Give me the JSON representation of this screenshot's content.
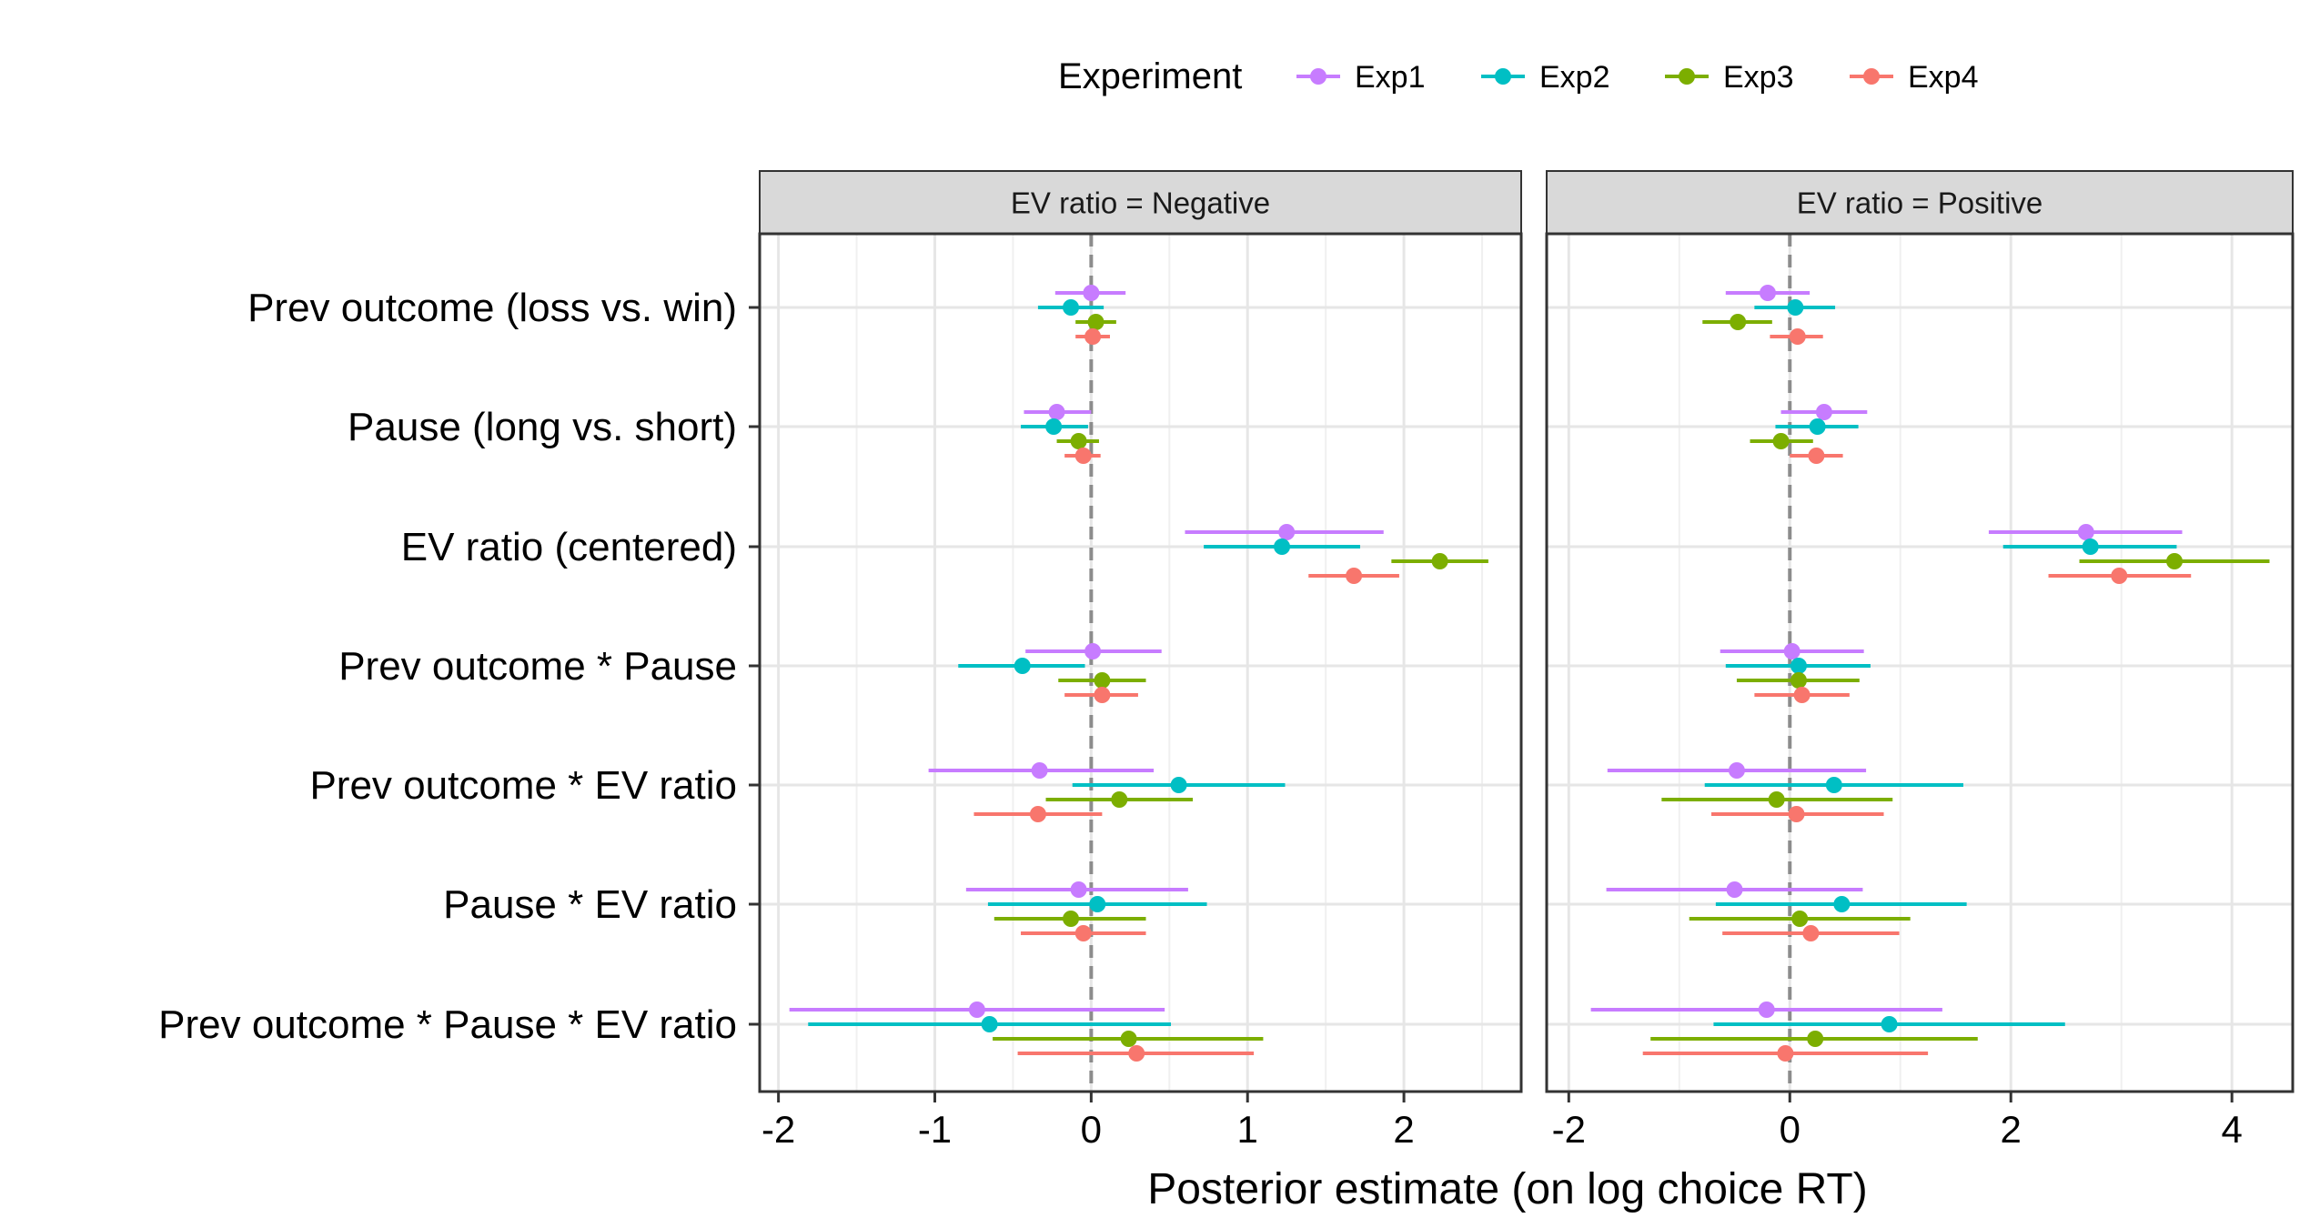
{
  "legend": {
    "title": "Experiment",
    "items": [
      {
        "label": "Exp1",
        "color": "#C77CFF"
      },
      {
        "label": "Exp2",
        "color": "#00BFC4"
      },
      {
        "label": "Exp3",
        "color": "#7CAE00"
      },
      {
        "label": "Exp4",
        "color": "#F8766D"
      }
    ]
  },
  "chart_data": {
    "type": "scatter",
    "subtype": "coefficient interval plot (point estimate with horizontal interval)",
    "xlabel": "Posterior estimate (on log choice RT)",
    "ylabel": "",
    "grid": true,
    "legend_position": "top",
    "reference_line_x": 0,
    "terms": [
      "Prev outcome (loss vs. win)",
      "Pause (long vs. short)",
      "EV ratio (centered)",
      "Prev outcome * Pause",
      "Prev outcome * EV ratio",
      "Pause * EV ratio",
      "Prev outcome * Pause * EV ratio"
    ],
    "panels": [
      {
        "title": "EV ratio = Negative",
        "xlim": [
          -2.12,
          2.75
        ],
        "xticks": [
          -2,
          -1,
          0,
          1,
          2
        ],
        "series": [
          {
            "name": "Exp1",
            "estimates": [
              0.0,
              -0.22,
              1.25,
              0.01,
              -0.33,
              -0.08,
              -0.73
            ],
            "lower": [
              -0.23,
              -0.43,
              0.6,
              -0.42,
              -1.04,
              -0.8,
              -1.93
            ],
            "upper": [
              0.22,
              0.0,
              1.87,
              0.45,
              0.4,
              0.62,
              0.47
            ]
          },
          {
            "name": "Exp2",
            "estimates": [
              -0.13,
              -0.24,
              1.22,
              -0.44,
              0.56,
              0.04,
              -0.65
            ],
            "lower": [
              -0.34,
              -0.45,
              0.72,
              -0.85,
              -0.12,
              -0.66,
              -1.81
            ],
            "upper": [
              0.08,
              -0.02,
              1.72,
              -0.04,
              1.24,
              0.74,
              0.51
            ]
          },
          {
            "name": "Exp3",
            "estimates": [
              0.03,
              -0.08,
              2.23,
              0.07,
              0.18,
              -0.13,
              0.24
            ],
            "lower": [
              -0.1,
              -0.22,
              1.92,
              -0.21,
              -0.29,
              -0.62,
              -0.63
            ],
            "upper": [
              0.16,
              0.05,
              2.54,
              0.35,
              0.65,
              0.35,
              1.1
            ]
          },
          {
            "name": "Exp4",
            "estimates": [
              0.01,
              -0.05,
              1.68,
              0.07,
              -0.34,
              -0.05,
              0.29
            ],
            "lower": [
              -0.1,
              -0.17,
              1.39,
              -0.17,
              -0.75,
              -0.45,
              -0.47
            ],
            "upper": [
              0.12,
              0.06,
              1.97,
              0.3,
              0.07,
              0.35,
              1.04
            ]
          }
        ]
      },
      {
        "title": "EV ratio = Positive",
        "xlim": [
          -2.2,
          4.55
        ],
        "xticks": [
          -2,
          0,
          2,
          4
        ],
        "series": [
          {
            "name": "Exp1",
            "estimates": [
              -0.2,
              0.31,
              2.68,
              0.02,
              -0.48,
              -0.5,
              -0.21
            ],
            "lower": [
              -0.58,
              -0.08,
              1.8,
              -0.63,
              -1.65,
              -1.66,
              -1.8
            ],
            "upper": [
              0.18,
              0.7,
              3.55,
              0.67,
              0.69,
              0.66,
              1.38
            ]
          },
          {
            "name": "Exp2",
            "estimates": [
              0.05,
              0.25,
              2.72,
              0.08,
              0.4,
              0.47,
              0.9
            ],
            "lower": [
              -0.32,
              -0.13,
              1.93,
              -0.58,
              -0.77,
              -0.67,
              -0.69
            ],
            "upper": [
              0.41,
              0.62,
              3.5,
              0.73,
              1.57,
              1.6,
              2.49
            ]
          },
          {
            "name": "Exp3",
            "estimates": [
              -0.47,
              -0.08,
              3.48,
              0.08,
              -0.12,
              0.09,
              0.23
            ],
            "lower": [
              -0.79,
              -0.36,
              2.62,
              -0.48,
              -1.16,
              -0.91,
              -1.26
            ],
            "upper": [
              -0.16,
              0.21,
              4.34,
              0.63,
              0.93,
              1.09,
              1.7
            ]
          },
          {
            "name": "Exp4",
            "estimates": [
              0.07,
              0.24,
              2.98,
              0.11,
              0.06,
              0.19,
              -0.04
            ],
            "lower": [
              -0.18,
              0.0,
              2.34,
              -0.32,
              -0.71,
              -0.61,
              -1.33
            ],
            "upper": [
              0.3,
              0.48,
              3.63,
              0.54,
              0.85,
              0.99,
              1.25
            ]
          }
        ]
      }
    ]
  }
}
